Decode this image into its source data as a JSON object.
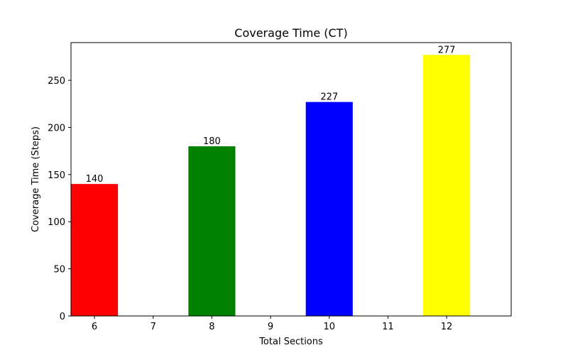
{
  "chart_data": {
    "type": "bar",
    "title": "Coverage Time (CT)",
    "xlabel": "Total Sections",
    "ylabel": "Coverage Time (Steps)",
    "x": [
      6,
      8,
      10,
      12
    ],
    "values": [
      140,
      180,
      227,
      277
    ],
    "data_labels": [
      "140",
      "180",
      "227",
      "277"
    ],
    "colors": [
      "#ff0000",
      "#008000",
      "#0000ff",
      "#ffff00"
    ],
    "xlim": [
      5.6,
      13.1
    ],
    "ylim": [
      0,
      290
    ],
    "xticks": [
      6,
      7,
      8,
      9,
      10,
      11,
      12
    ],
    "xtick_labels": [
      "6",
      "7",
      "8",
      "9",
      "10",
      "11",
      "12"
    ],
    "yticks": [
      0,
      50,
      100,
      150,
      200,
      250
    ],
    "ytick_labels": [
      "0",
      "50",
      "100",
      "150",
      "200",
      "250"
    ],
    "bar_width": 0.8,
    "grid": false,
    "legend": "none"
  }
}
